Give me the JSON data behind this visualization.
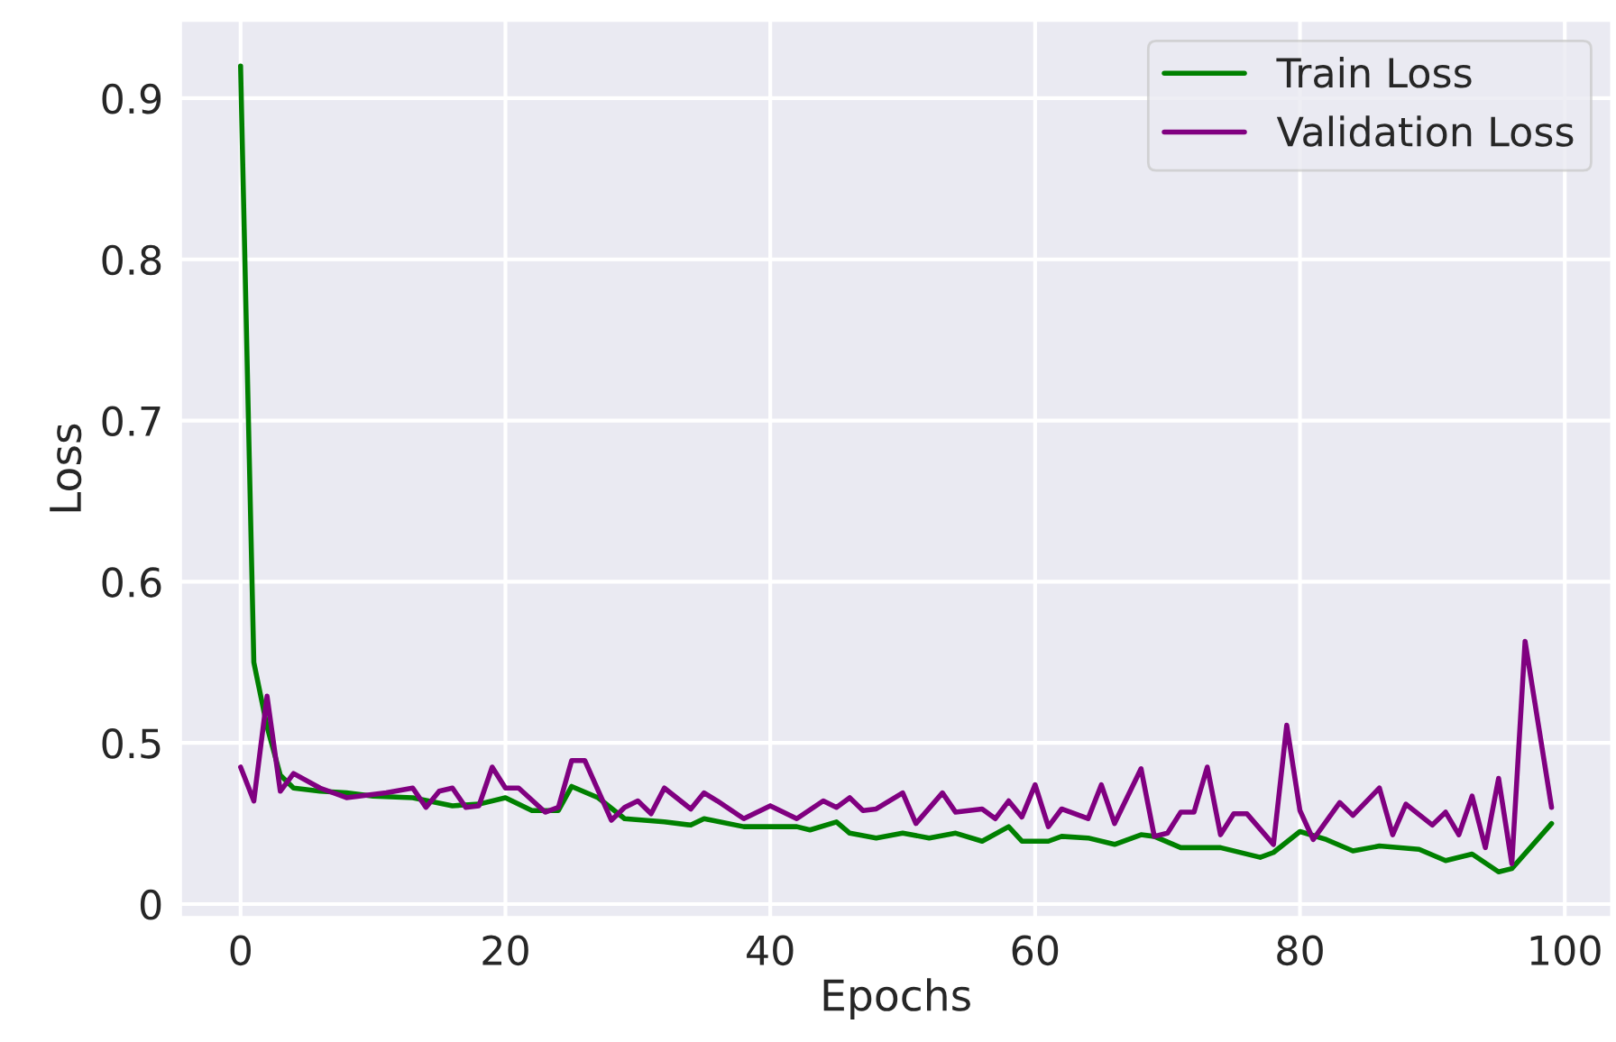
{
  "chart_data": {
    "type": "line",
    "xlabel": "Epochs",
    "ylabel": "Loss",
    "xlim": [
      -4.5,
      103.5
    ],
    "ylim": [
      0.392,
      0.948
    ],
    "xticks": [
      0,
      20,
      40,
      60,
      80,
      100
    ],
    "yticks": [
      {
        "value": 0.4,
        "label": "0"
      },
      0.5,
      0.6,
      0.7,
      0.8,
      0.9
    ],
    "grid": true,
    "legend": "top right",
    "line_style": "solid",
    "series": [
      {
        "name": "Train Loss",
        "color": "#008000",
        "x": [
          0,
          1,
          2,
          3,
          4,
          6,
          8,
          10,
          13,
          16,
          18,
          20,
          22,
          24,
          25,
          27,
          29,
          32,
          34,
          35,
          38,
          42,
          43,
          45,
          46,
          48,
          50,
          52,
          54,
          56,
          58,
          59,
          61,
          62,
          64,
          66,
          68,
          69,
          71,
          74,
          77,
          78,
          80,
          82,
          84,
          86,
          89,
          91,
          93,
          95,
          96,
          99
        ],
        "values": [
          0.92,
          0.55,
          0.51,
          0.48,
          0.472,
          0.47,
          0.469,
          0.467,
          0.466,
          0.461,
          0.462,
          0.466,
          0.458,
          0.458,
          0.473,
          0.466,
          0.453,
          0.451,
          0.449,
          0.453,
          0.448,
          0.448,
          0.446,
          0.451,
          0.444,
          0.441,
          0.444,
          0.441,
          0.444,
          0.439,
          0.448,
          0.439,
          0.439,
          0.442,
          0.441,
          0.437,
          0.443,
          0.442,
          0.435,
          0.435,
          0.429,
          0.432,
          0.445,
          0.44,
          0.433,
          0.436,
          0.434,
          0.427,
          0.431,
          0.42,
          0.422,
          0.45
        ]
      },
      {
        "name": "Validation Loss",
        "color": "#800080",
        "x": [
          0,
          1,
          2,
          3,
          4,
          6,
          8,
          11,
          13,
          14,
          15,
          16,
          17,
          18,
          19,
          20,
          21,
          23,
          24,
          25,
          26,
          28,
          29,
          30,
          31,
          32,
          34,
          35,
          36,
          38,
          40,
          42,
          44,
          45,
          46,
          47,
          48,
          50,
          51,
          53,
          54,
          56,
          57,
          58,
          59,
          60,
          61,
          62,
          64,
          65,
          66,
          68,
          69,
          70,
          71,
          72,
          73,
          74,
          75,
          76,
          78,
          79,
          80,
          81,
          83,
          84,
          86,
          87,
          88,
          90,
          91,
          92,
          93,
          94,
          95,
          96,
          97,
          99
        ],
        "values": [
          0.485,
          0.464,
          0.529,
          0.47,
          0.481,
          0.472,
          0.466,
          0.469,
          0.472,
          0.46,
          0.47,
          0.472,
          0.46,
          0.461,
          0.485,
          0.472,
          0.472,
          0.457,
          0.46,
          0.489,
          0.489,
          0.452,
          0.46,
          0.464,
          0.456,
          0.472,
          0.459,
          0.469,
          0.464,
          0.453,
          0.461,
          0.453,
          0.464,
          0.46,
          0.466,
          0.458,
          0.459,
          0.469,
          0.45,
          0.469,
          0.457,
          0.459,
          0.453,
          0.464,
          0.454,
          0.474,
          0.448,
          0.459,
          0.453,
          0.474,
          0.45,
          0.484,
          0.442,
          0.444,
          0.457,
          0.457,
          0.485,
          0.443,
          0.456,
          0.456,
          0.437,
          0.511,
          0.458,
          0.44,
          0.463,
          0.455,
          0.472,
          0.443,
          0.462,
          0.449,
          0.457,
          0.443,
          0.467,
          0.435,
          0.478,
          0.425,
          0.563,
          0.46
        ]
      }
    ]
  }
}
